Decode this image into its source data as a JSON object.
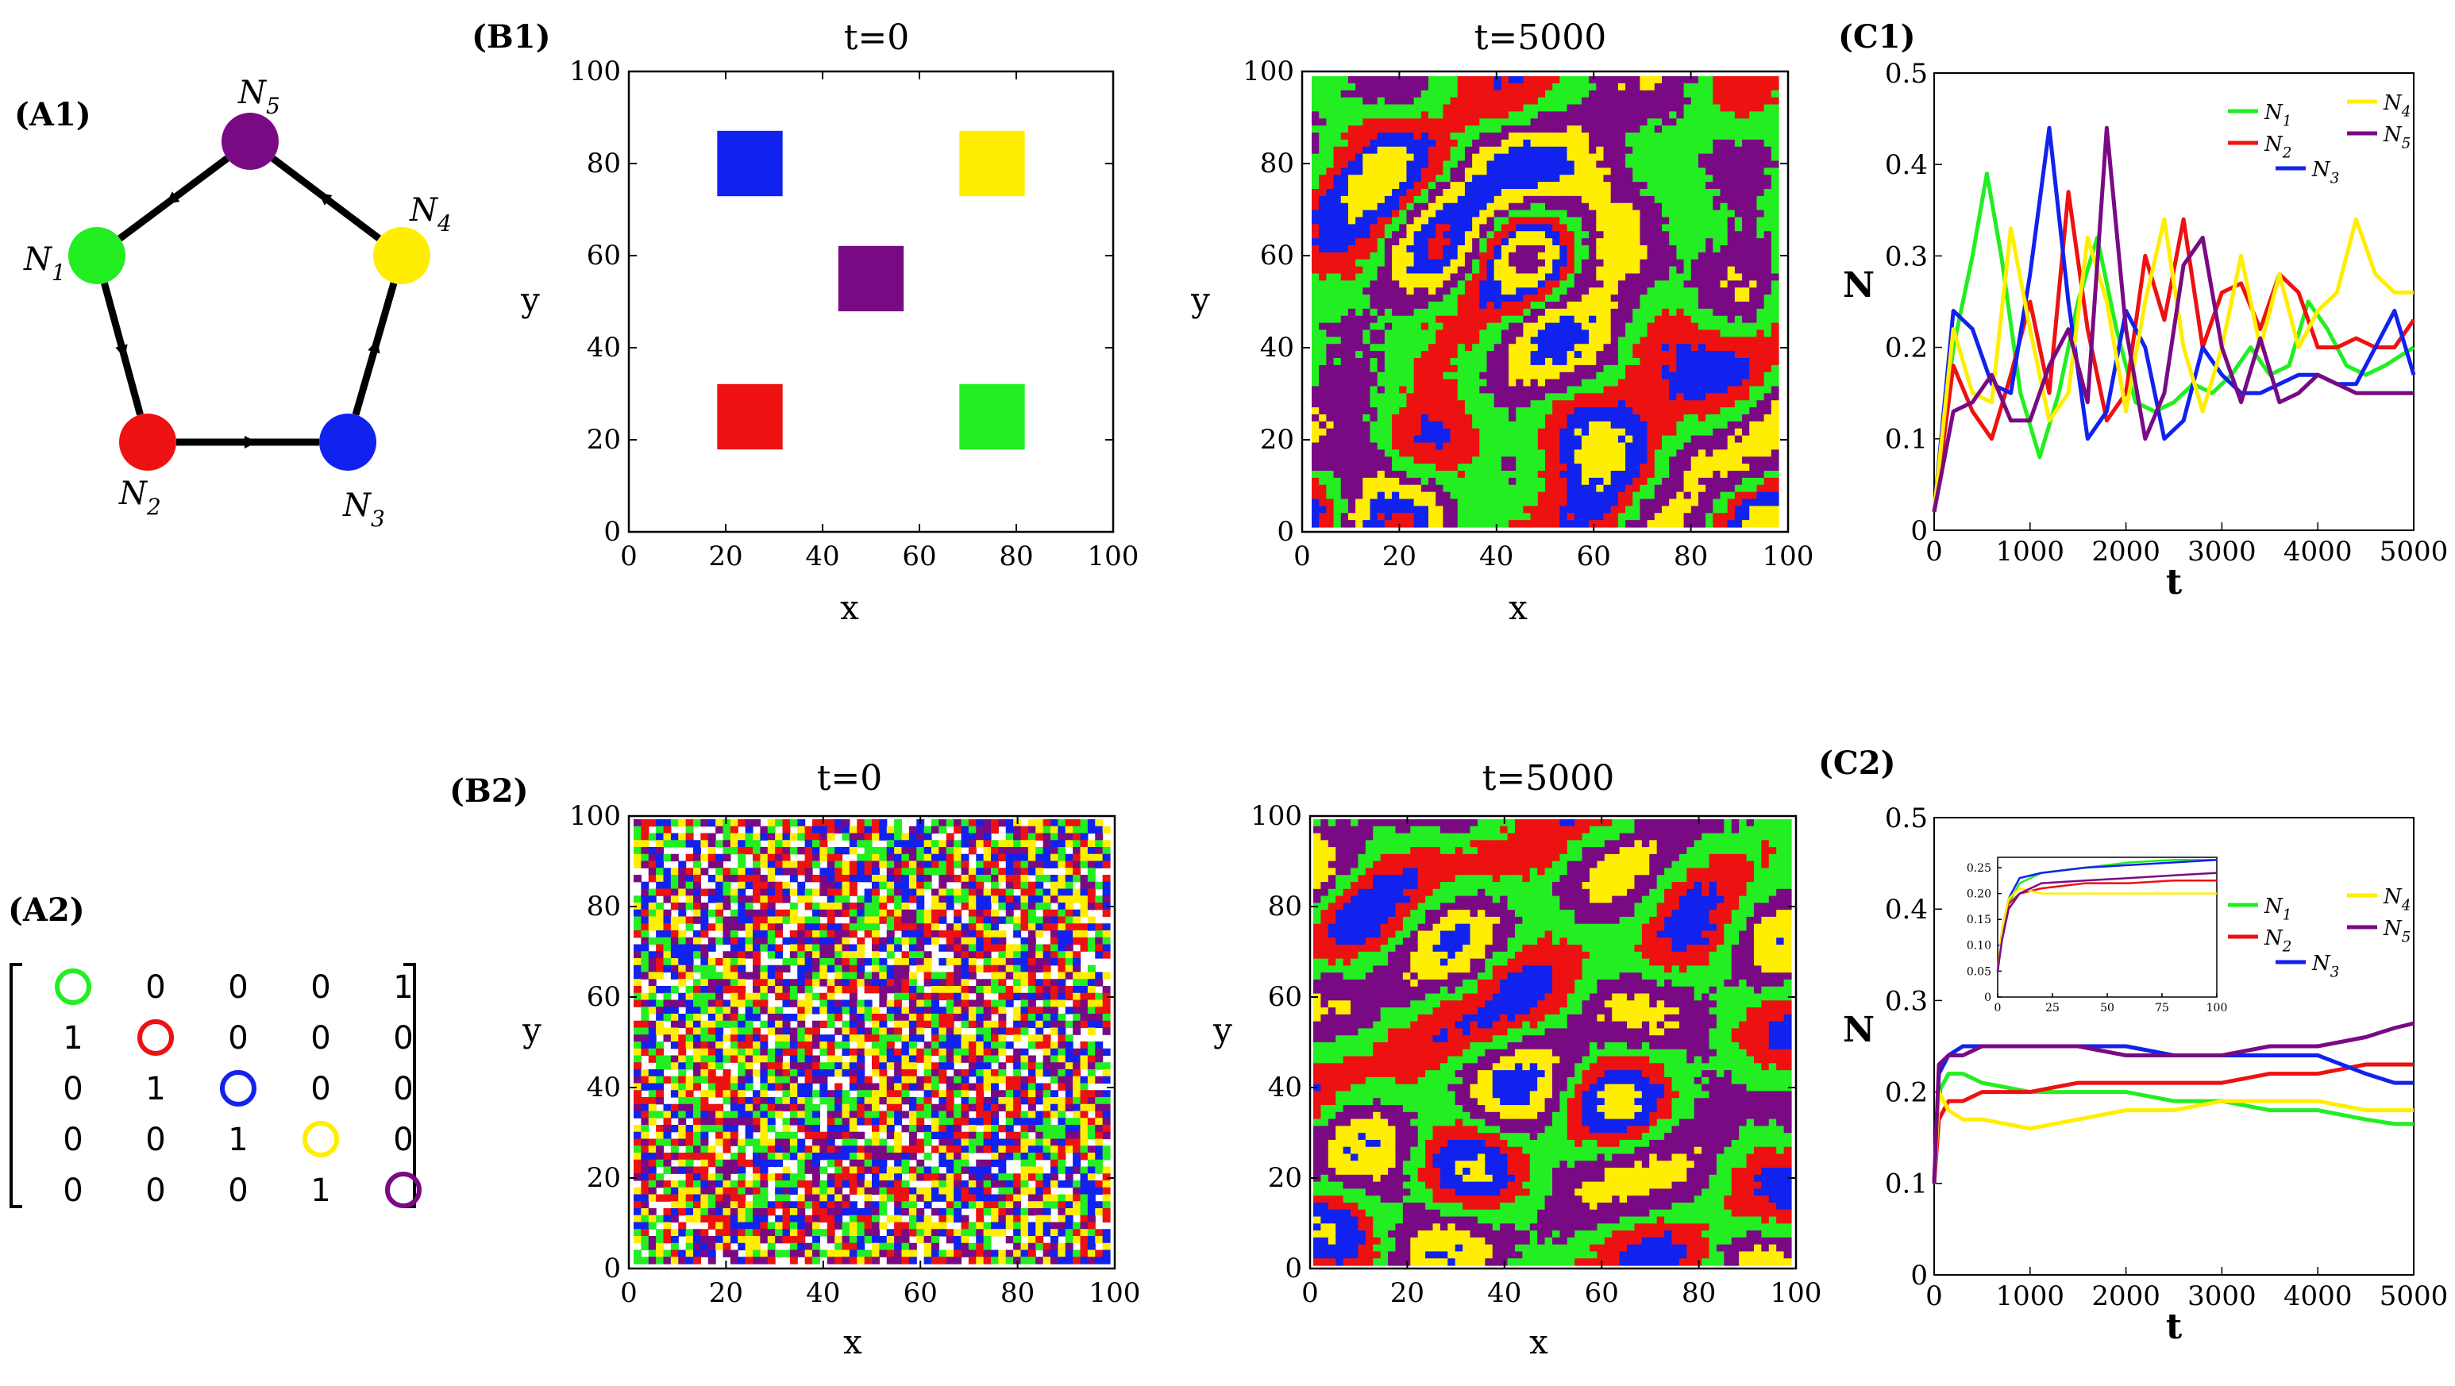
{
  "colors": {
    "n1": "#22ee22",
    "n2": "#ee1111",
    "n3": "#1122ee",
    "n4": "#ffee00",
    "n5": "#7a0a84"
  },
  "panels": {
    "a1": "(A1)",
    "a2": "(A2)",
    "b1": "(B1)",
    "b2": "(B2)",
    "c1": "(C1)",
    "c2": "(C2)"
  },
  "network": {
    "nodes": [
      {
        "id": "N1",
        "sub": "1",
        "color": "n1"
      },
      {
        "id": "N2",
        "sub": "2",
        "color": "n2"
      },
      {
        "id": "N3",
        "sub": "3",
        "color": "n3"
      },
      {
        "id": "N4",
        "sub": "4",
        "color": "n4"
      },
      {
        "id": "N5",
        "sub": "5",
        "color": "n5"
      }
    ],
    "edges": [
      [
        "N1",
        "N2"
      ],
      [
        "N2",
        "N3"
      ],
      [
        "N3",
        "N4"
      ],
      [
        "N4",
        "N5"
      ],
      [
        "N5",
        "N1"
      ]
    ]
  },
  "matrix": [
    [
      "o1",
      "0",
      "0",
      "0",
      "1"
    ],
    [
      "1",
      "o2",
      "0",
      "0",
      "0"
    ],
    [
      "0",
      "1",
      "o3",
      "0",
      "0"
    ],
    [
      "0",
      "0",
      "1",
      "o4",
      "0"
    ],
    [
      "0",
      "0",
      "0",
      "1",
      "o5"
    ]
  ],
  "grids": {
    "b1_t0_title": "t=0",
    "b1_t5000_title": "t=5000",
    "b2_t0_title": "t=0",
    "b2_t5000_title": "t=5000",
    "xlabel": "x",
    "ylabel": "y",
    "ticks": [
      "0",
      "20",
      "40",
      "60",
      "80",
      "100"
    ],
    "b1_initial_blocks": [
      {
        "x": 25,
        "y": 80,
        "species": "n3"
      },
      {
        "x": 75,
        "y": 80,
        "species": "n4"
      },
      {
        "x": 50,
        "y": 55,
        "species": "n5"
      },
      {
        "x": 25,
        "y": 25,
        "species": "n2"
      },
      {
        "x": 75,
        "y": 25,
        "species": "n1"
      }
    ]
  },
  "chart_data": [
    {
      "type": "line",
      "panel": "C1",
      "xlabel": "t",
      "ylabel": "N",
      "xlim": [
        0,
        5000
      ],
      "ylim": [
        0,
        0.5
      ],
      "xticks": [
        "0",
        "1000",
        "2000",
        "3000",
        "4000",
        "5000"
      ],
      "yticks": [
        "0",
        "0.1",
        "0.2",
        "0.3",
        "0.4",
        "0.5"
      ],
      "legend": "top-right",
      "series": [
        {
          "name": "N1",
          "color": "n1",
          "x": [
            0,
            200,
            400,
            550,
            700,
            900,
            1100,
            1300,
            1500,
            1700,
            1900,
            2100,
            2300,
            2500,
            2700,
            2900,
            3100,
            3300,
            3500,
            3700,
            3900,
            4100,
            4300,
            4500,
            4700,
            4850,
            5000
          ],
          "y": [
            0.02,
            0.2,
            0.3,
            0.39,
            0.3,
            0.15,
            0.08,
            0.15,
            0.25,
            0.32,
            0.22,
            0.14,
            0.13,
            0.14,
            0.16,
            0.15,
            0.17,
            0.2,
            0.17,
            0.18,
            0.25,
            0.22,
            0.18,
            0.17,
            0.18,
            0.19,
            0.2
          ]
        },
        {
          "name": "N2",
          "color": "n2",
          "x": [
            0,
            200,
            400,
            600,
            800,
            1000,
            1200,
            1400,
            1600,
            1800,
            2000,
            2200,
            2400,
            2600,
            2800,
            3000,
            3200,
            3400,
            3600,
            3800,
            4000,
            4200,
            4400,
            4600,
            4800,
            5000
          ],
          "y": [
            0.02,
            0.18,
            0.13,
            0.1,
            0.17,
            0.25,
            0.15,
            0.37,
            0.22,
            0.12,
            0.15,
            0.3,
            0.23,
            0.34,
            0.2,
            0.26,
            0.27,
            0.22,
            0.28,
            0.26,
            0.2,
            0.2,
            0.21,
            0.2,
            0.2,
            0.23
          ]
        },
        {
          "name": "N3",
          "color": "n3",
          "x": [
            0,
            200,
            400,
            600,
            800,
            1000,
            1200,
            1400,
            1600,
            1800,
            2000,
            2200,
            2400,
            2600,
            2800,
            3000,
            3200,
            3400,
            3600,
            3800,
            4000,
            4200,
            4400,
            4600,
            4800,
            5000
          ],
          "y": [
            0.02,
            0.24,
            0.22,
            0.16,
            0.15,
            0.28,
            0.44,
            0.25,
            0.1,
            0.13,
            0.24,
            0.2,
            0.1,
            0.12,
            0.2,
            0.17,
            0.15,
            0.15,
            0.16,
            0.17,
            0.17,
            0.16,
            0.16,
            0.2,
            0.24,
            0.17
          ]
        },
        {
          "name": "N4",
          "color": "n4",
          "x": [
            0,
            200,
            400,
            600,
            800,
            1000,
            1200,
            1400,
            1600,
            1800,
            2000,
            2200,
            2400,
            2600,
            2800,
            3000,
            3200,
            3400,
            3600,
            3800,
            4000,
            4200,
            4400,
            4600,
            4800,
            5000
          ],
          "y": [
            0.02,
            0.22,
            0.15,
            0.14,
            0.33,
            0.22,
            0.12,
            0.15,
            0.32,
            0.25,
            0.13,
            0.25,
            0.34,
            0.2,
            0.13,
            0.2,
            0.3,
            0.2,
            0.28,
            0.2,
            0.24,
            0.26,
            0.34,
            0.28,
            0.26,
            0.26
          ]
        },
        {
          "name": "N5",
          "color": "n5",
          "x": [
            0,
            200,
            400,
            600,
            800,
            1000,
            1200,
            1400,
            1600,
            1800,
            2000,
            2200,
            2400,
            2600,
            2800,
            3000,
            3200,
            3400,
            3600,
            3800,
            4000,
            4200,
            4400,
            4600,
            4800,
            5000
          ],
          "y": [
            0.02,
            0.13,
            0.14,
            0.17,
            0.12,
            0.12,
            0.18,
            0.22,
            0.14,
            0.44,
            0.22,
            0.1,
            0.15,
            0.29,
            0.32,
            0.2,
            0.14,
            0.21,
            0.14,
            0.15,
            0.17,
            0.16,
            0.15,
            0.15,
            0.15,
            0.15
          ]
        }
      ]
    },
    {
      "type": "line",
      "panel": "C2",
      "xlabel": "t",
      "ylabel": "N",
      "xlim": [
        0,
        5000
      ],
      "ylim": [
        0,
        0.5
      ],
      "xticks": [
        "0",
        "1000",
        "2000",
        "3000",
        "4000",
        "5000"
      ],
      "yticks": [
        "0",
        "0.1",
        "0.2",
        "0.3",
        "0.4",
        "0.5"
      ],
      "legend": "top-right",
      "series": [
        {
          "name": "N1",
          "color": "n1",
          "x": [
            0,
            50,
            150,
            300,
            500,
            1000,
            1500,
            2000,
            2500,
            3000,
            3500,
            4000,
            4500,
            4800,
            5000
          ],
          "y": [
            0.1,
            0.2,
            0.22,
            0.22,
            0.21,
            0.2,
            0.2,
            0.2,
            0.19,
            0.19,
            0.18,
            0.18,
            0.17,
            0.165,
            0.165
          ]
        },
        {
          "name": "N2",
          "color": "n2",
          "x": [
            0,
            50,
            150,
            300,
            500,
            1000,
            1500,
            2000,
            2500,
            3000,
            3500,
            4000,
            4500,
            4800,
            5000
          ],
          "y": [
            0.1,
            0.17,
            0.19,
            0.19,
            0.2,
            0.2,
            0.21,
            0.21,
            0.21,
            0.21,
            0.22,
            0.22,
            0.23,
            0.23,
            0.23
          ]
        },
        {
          "name": "N3",
          "color": "n3",
          "x": [
            0,
            50,
            150,
            300,
            500,
            1000,
            1500,
            2000,
            2500,
            3000,
            3500,
            4000,
            4500,
            4800,
            5000
          ],
          "y": [
            0.1,
            0.22,
            0.24,
            0.25,
            0.25,
            0.25,
            0.25,
            0.25,
            0.24,
            0.24,
            0.24,
            0.24,
            0.22,
            0.21,
            0.21
          ]
        },
        {
          "name": "N4",
          "color": "n4",
          "x": [
            0,
            50,
            150,
            300,
            500,
            1000,
            1500,
            2000,
            2500,
            3000,
            3500,
            4000,
            4500,
            4800,
            5000
          ],
          "y": [
            0.1,
            0.2,
            0.18,
            0.17,
            0.17,
            0.16,
            0.17,
            0.18,
            0.18,
            0.19,
            0.19,
            0.19,
            0.18,
            0.18,
            0.18
          ]
        },
        {
          "name": "N5",
          "color": "n5",
          "x": [
            0,
            50,
            150,
            300,
            500,
            1000,
            1500,
            2000,
            2500,
            3000,
            3500,
            4000,
            4500,
            4800,
            5000
          ],
          "y": [
            0.1,
            0.23,
            0.24,
            0.24,
            0.25,
            0.25,
            0.25,
            0.24,
            0.24,
            0.24,
            0.25,
            0.25,
            0.26,
            0.27,
            0.275
          ]
        }
      ]
    },
    {
      "type": "line",
      "panel": "C2-inset",
      "xlim": [
        0,
        100
      ],
      "ylim": [
        0,
        0.27
      ],
      "xticks": [
        "0",
        "25",
        "50",
        "75",
        "100"
      ],
      "yticks": [
        "0",
        "0.05",
        "0.10",
        "0.15",
        "0.20",
        "0.25"
      ],
      "series": [
        {
          "color": "n1",
          "x": [
            0,
            2,
            5,
            10,
            20,
            40,
            60,
            80,
            100
          ],
          "y": [
            0.05,
            0.12,
            0.18,
            0.22,
            0.24,
            0.25,
            0.26,
            0.265,
            0.265
          ]
        },
        {
          "color": "n2",
          "x": [
            0,
            2,
            5,
            10,
            20,
            40,
            60,
            80,
            100
          ],
          "y": [
            0.05,
            0.12,
            0.18,
            0.2,
            0.21,
            0.22,
            0.22,
            0.225,
            0.225
          ]
        },
        {
          "color": "n3",
          "x": [
            0,
            2,
            5,
            10,
            20,
            40,
            60,
            80,
            100
          ],
          "y": [
            0.05,
            0.13,
            0.19,
            0.23,
            0.24,
            0.25,
            0.255,
            0.26,
            0.265
          ]
        },
        {
          "color": "n4",
          "x": [
            0,
            2,
            5,
            10,
            20,
            40,
            60,
            80,
            100
          ],
          "y": [
            0.05,
            0.13,
            0.19,
            0.21,
            0.2,
            0.2,
            0.2,
            0.2,
            0.2
          ]
        },
        {
          "color": "n5",
          "x": [
            0,
            2,
            5,
            10,
            20,
            40,
            60,
            80,
            100
          ],
          "y": [
            0.05,
            0.11,
            0.17,
            0.2,
            0.22,
            0.225,
            0.23,
            0.235,
            0.24
          ]
        }
      ]
    }
  ]
}
